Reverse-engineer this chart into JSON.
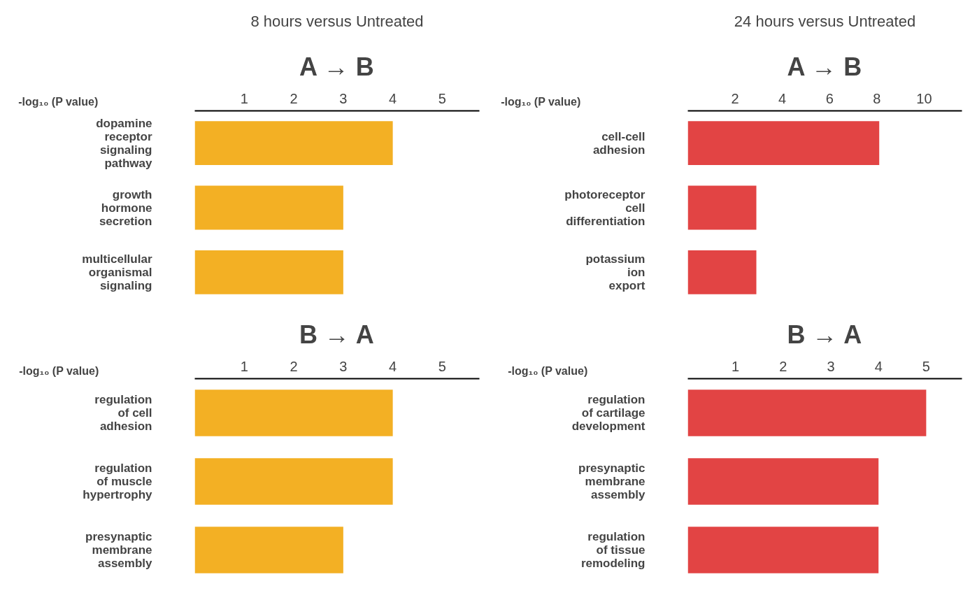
{
  "chart_data": [
    {
      "type": "bar",
      "orientation": "horizontal",
      "title": "8 hours versus Untreated",
      "subtitle": "A → B",
      "xlabel": "-log₁₀ (P value)",
      "categories": [
        "dopamine\nreceptor\nsignaling\npathway",
        "growth\nhormone\nsecretion",
        "multicellular\norganismal\nsignaling"
      ],
      "values": [
        4.0,
        3.0,
        3.0
      ],
      "color": "#f3b024",
      "xlim": [
        0,
        5.75
      ],
      "xticks": [
        1,
        2,
        3,
        4,
        5
      ],
      "grid": false
    },
    {
      "type": "bar",
      "orientation": "horizontal",
      "title": "24 hours versus Untreated",
      "subtitle": "A → B",
      "xlabel": "-log₁₀ (P value)",
      "categories": [
        "cell-cell\nadhesion",
        "photoreceptor\ncell\ndifferentiation",
        "potassium\nion\nexport"
      ],
      "values": [
        8.1,
        2.9,
        2.9
      ],
      "color": "#e24444",
      "xlim": [
        0,
        11.6
      ],
      "xticks": [
        2,
        4,
        6,
        8,
        10
      ],
      "grid": false
    },
    {
      "type": "bar",
      "orientation": "horizontal",
      "title": "B → A",
      "xlabel": "-log₁₀ (P value)",
      "categories": [
        "regulation\nof cell\nadhesion",
        "regulation\nof muscle\nhypertrophy",
        "presynaptic\nmembrane\nassembly"
      ],
      "values": [
        4.0,
        4.0,
        3.0
      ],
      "color": "#f3b024",
      "xlim": [
        0,
        5.75
      ],
      "xticks": [
        1,
        2,
        3,
        4,
        5
      ],
      "grid": false
    },
    {
      "type": "bar",
      "orientation": "horizontal",
      "title": "B → A",
      "xlabel": "-log₁₀ (P value)",
      "categories": [
        "regulation\nof cartilage\ndevelopment",
        "presynaptic\nmembrane\nassembly",
        "regulation\nof tissue\nremodeling"
      ],
      "values": [
        5.0,
        4.0,
        4.0
      ],
      "color": "#e24444",
      "xlim": [
        0,
        5.75
      ],
      "xticks": [
        1,
        2,
        3,
        4,
        5
      ],
      "grid": false
    }
  ]
}
